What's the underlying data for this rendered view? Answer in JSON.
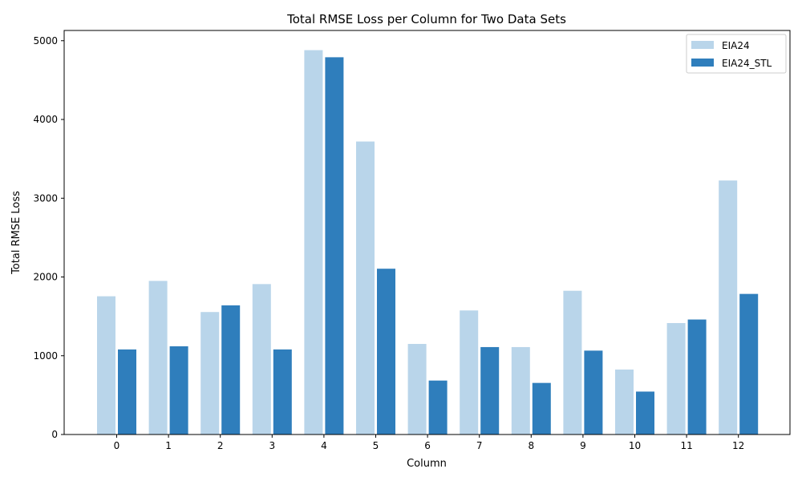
{
  "chart_data": {
    "type": "bar",
    "title": "Total RMSE Loss per Column for Two Data Sets",
    "xlabel": "Column",
    "ylabel": "Total RMSE Loss",
    "categories": [
      "0",
      "1",
      "2",
      "3",
      "4",
      "5",
      "6",
      "7",
      "8",
      "9",
      "10",
      "11",
      "12"
    ],
    "yticks": [
      "0",
      "1000",
      "2000",
      "3000",
      "4000",
      "5000"
    ],
    "ylim": [
      0,
      5130
    ],
    "grid": false,
    "legend_position": "top-right",
    "series": [
      {
        "name": "EIA24",
        "color": "#b9d5ea",
        "values": [
          1755,
          1950,
          1555,
          1910,
          4880,
          3720,
          1150,
          1575,
          1110,
          1825,
          825,
          1415,
          3225
        ]
      },
      {
        "name": "EIA24_STL",
        "color": "#2f7ebc",
        "values": [
          1080,
          1120,
          1640,
          1080,
          4790,
          2105,
          685,
          1110,
          655,
          1065,
          545,
          1460,
          1785
        ]
      }
    ]
  }
}
